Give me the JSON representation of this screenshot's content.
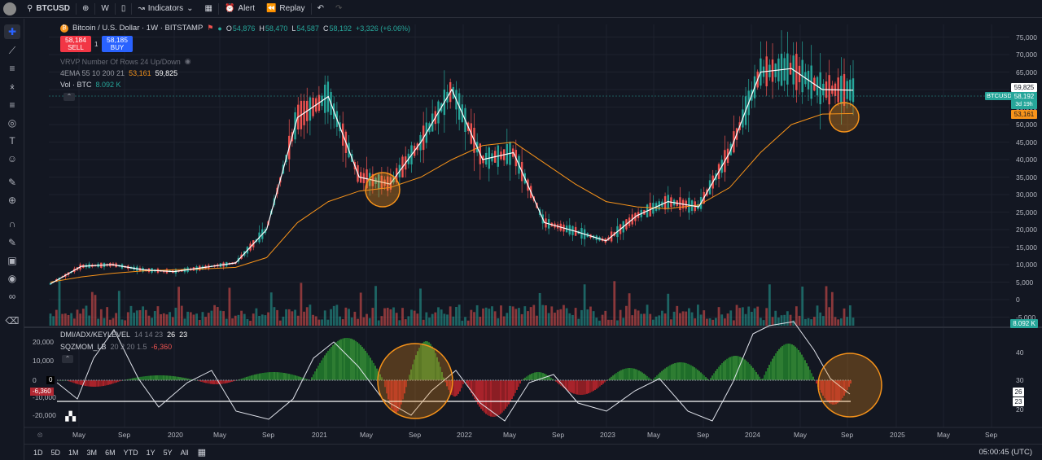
{
  "topbar": {
    "symbol": "BTCUSD",
    "interval": "W",
    "indicators_label": "Indicators",
    "alert_label": "Alert",
    "replay_label": "Replay"
  },
  "legend": {
    "title": "Bitcoin / U.S. Dollar · 1W · BITSTAMP",
    "ohlc": {
      "o_label": "O",
      "o": "54,876",
      "h_label": "H",
      "h": "58,470",
      "l_label": "L",
      "l": "54,587",
      "c_label": "C",
      "c": "58,192",
      "change": "+3,326 (+6.06%)"
    },
    "sell_price": "58,184",
    "sell_label": "SELL",
    "spread": "1",
    "buy_price": "58,185",
    "buy_label": "BUY",
    "vrvp": "VRVP Number Of Rows 24 Up/Down",
    "ema_name": "4EMA 55 10 200 21",
    "ema_v1": "53,161",
    "ema_v2": "59,825",
    "vol_name": "Vol · BTC",
    "vol_value": "8.092 K"
  },
  "price_tags": {
    "ema_fast": "59,825",
    "symbol": "BTCUSD",
    "last": "58,192",
    "countdown": "3d 19h",
    "ema_slow": "53,161",
    "volume": "8.092 K"
  },
  "price_axis": [
    "75,000",
    "70,000",
    "65,000",
    "60,000",
    "55,000",
    "50,000",
    "45,000",
    "40,000",
    "35,000",
    "30,000",
    "25,000",
    "20,000",
    "15,000",
    "10,000",
    "5,000",
    "0",
    "-5,000"
  ],
  "lower_pane": {
    "dmi_name": "DMI/ADX/KEYLEVEL",
    "dmi_params": "14 14 23",
    "dmi_v1": "26",
    "dmi_v2": "23",
    "sqz_name": "SQZMOM_LB",
    "sqz_params": "20 2 20 1.5",
    "sqz_value": "-6,360",
    "left_axis": [
      "20,000",
      "10,000",
      "0",
      "-10,000",
      "-20,000"
    ],
    "zero_tag": "0",
    "current_tag": "-6,360",
    "right_axis": [
      "40",
      "30",
      "20"
    ],
    "right_tag_1": "26",
    "right_tag_2": "23"
  },
  "time_axis": [
    "May",
    "Sep",
    "2020",
    "May",
    "Sep",
    "2021",
    "May",
    "Sep",
    "2022",
    "May",
    "Sep",
    "2023",
    "May",
    "Sep",
    "2024",
    "May",
    "Sep",
    "2025",
    "May",
    "Sep"
  ],
  "bottombar": {
    "timeframes": [
      "1D",
      "5D",
      "1M",
      "3M",
      "6M",
      "YTD",
      "1Y",
      "5Y",
      "All"
    ],
    "clock": "05:00:45 (UTC)"
  },
  "colors": {
    "bull": "#26a69a",
    "bear": "#ef5350",
    "ema_fast": "#ffffff",
    "ema_slow": "#f7931a",
    "highlight": "#f7931a"
  },
  "chart_data": {
    "type": "line",
    "x": [
      "2019-03",
      "2019-06",
      "2019-09",
      "2019-12",
      "2020-03",
      "2020-06",
      "2020-09",
      "2020-12",
      "2021-03",
      "2021-04",
      "2021-06",
      "2021-07",
      "2021-09",
      "2021-11",
      "2022-01",
      "2022-03",
      "2022-06",
      "2022-09",
      "2022-12",
      "2023-03",
      "2023-06",
      "2023-09",
      "2023-12",
      "2024-03",
      "2024-06",
      "2024-08",
      "2024-09"
    ],
    "series": [
      {
        "name": "4EMA 55 10 200 21",
        "values": [
          4500,
          9500,
          10000,
          8500,
          8000,
          9200,
          10500,
          20000,
          52000,
          58000,
          35000,
          33000,
          45000,
          60000,
          40000,
          42000,
          22000,
          19500,
          16800,
          24000,
          28000,
          26500,
          42000,
          65000,
          66000,
          60000,
          59825
        ]
      },
      {
        "name": "4EMA 55 10 200 21",
        "values": [
          5000,
          6500,
          7500,
          8200,
          8500,
          8800,
          9200,
          12000,
          22000,
          28000,
          31000,
          32000,
          35000,
          40000,
          44000,
          45000,
          39000,
          33000,
          28000,
          26500,
          26000,
          27000,
          32000,
          42000,
          50000,
          53000,
          53161
        ]
      }
    ],
    "ylim": [
      -5000,
      75000
    ]
  }
}
